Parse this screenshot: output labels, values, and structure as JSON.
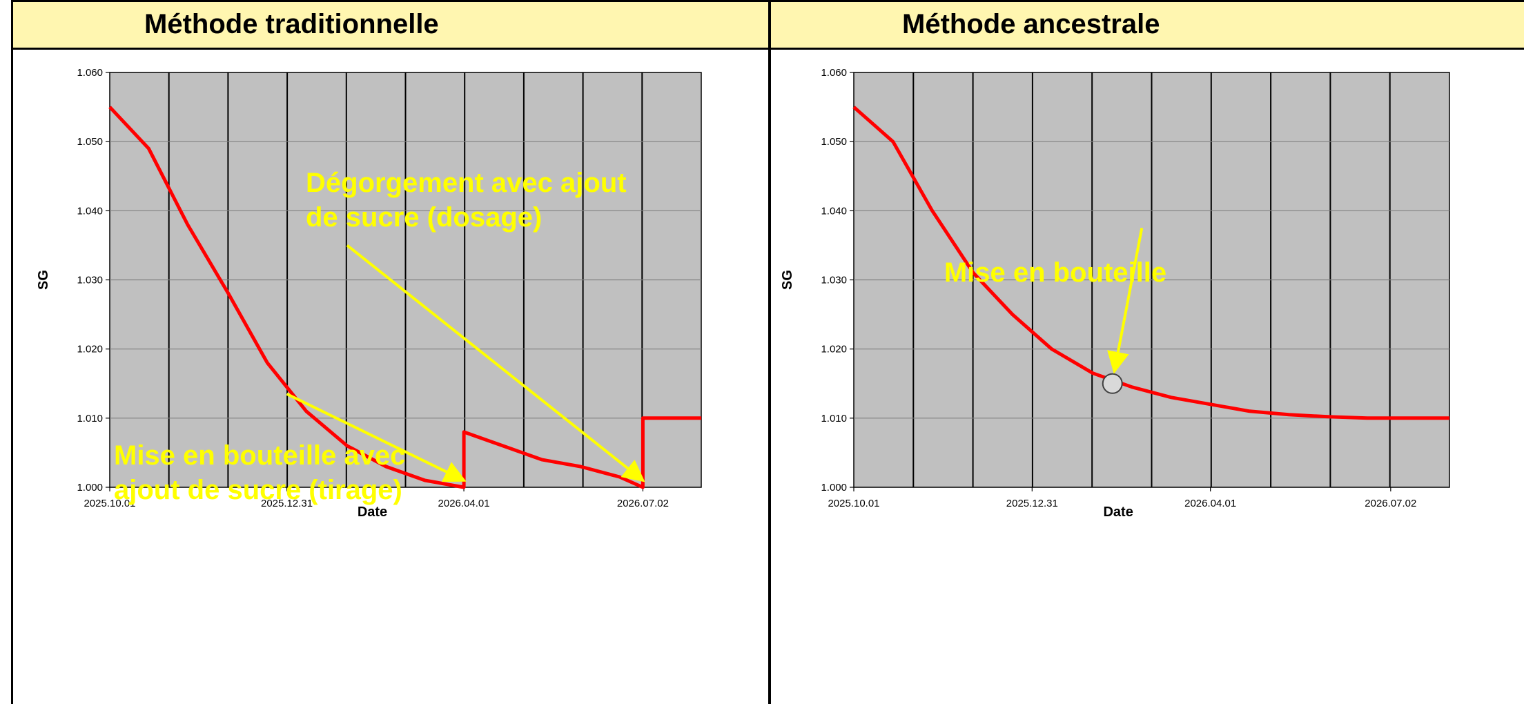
{
  "chart_data": [
    {
      "type": "line",
      "title": "Méthode traditionnelle",
      "xlabel": "Date",
      "ylabel": "SG",
      "ylim": [
        1.0,
        1.06
      ],
      "yticks": [
        "1.060",
        "1.050",
        "1.040",
        "1.030",
        "1.020",
        "1.010",
        "1.000"
      ],
      "xlim": [
        "2025.10.01",
        "2026.08.01"
      ],
      "xticks": [
        "2025.10.01",
        "2025.12.31",
        "2026.04.01",
        "2026.07.02"
      ],
      "grid": true,
      "series": [
        {
          "color": "#ff0000",
          "x": [
            "2025.10.01",
            "2025.10.21",
            "2025.11.10",
            "2025.12.01",
            "2025.12.21",
            "2026.01.10",
            "2026.01.31",
            "2026.02.20",
            "2026.03.12",
            "2026.04.01",
            "2026.04.01",
            "2026.04.21",
            "2026.05.11",
            "2026.05.31",
            "2026.06.20",
            "2026.07.02",
            "2026.07.02",
            "2026.08.01"
          ],
          "y": [
            1.055,
            1.049,
            1.038,
            1.028,
            1.018,
            1.011,
            1.006,
            1.003,
            1.001,
            1.0,
            1.008,
            1.006,
            1.004,
            1.003,
            1.0015,
            1.0,
            1.01,
            1.01
          ]
        }
      ],
      "annotations": [
        {
          "lines": [
            "Dégorgement avec ajout",
            "de sucre (dosage)"
          ],
          "arrow_from": [
            "2026.01.31",
            1.035
          ],
          "arrow_to": [
            "2026.07.02",
            1.001
          ]
        },
        {
          "lines": [
            "Mise en bouteille avec",
            "ajout de sucre (tirage)"
          ],
          "arrow_from": [
            "2025.12.31",
            1.0135
          ],
          "arrow_to": [
            "2026.04.01",
            1.001
          ]
        }
      ]
    },
    {
      "type": "line",
      "title": "Méthode ancestrale",
      "xlabel": "Date",
      "ylabel": "SG",
      "ylim": [
        1.0,
        1.06
      ],
      "yticks": [
        "1.060",
        "1.050",
        "1.040",
        "1.030",
        "1.020",
        "1.010",
        "1.000"
      ],
      "xlim": [
        "2025.10.01",
        "2026.08.01"
      ],
      "xticks": [
        "2025.10.01",
        "2025.12.31",
        "2026.04.01",
        "2026.07.02"
      ],
      "grid": true,
      "series": [
        {
          "color": "#ff0000",
          "x": [
            "2025.10.01",
            "2025.10.21",
            "2025.11.10",
            "2025.12.01",
            "2025.12.21",
            "2026.01.10",
            "2026.01.31",
            "2026.02.20",
            "2026.03.12",
            "2026.04.01",
            "2026.04.21",
            "2026.05.11",
            "2026.05.31",
            "2026.06.20",
            "2026.07.10",
            "2026.08.01"
          ],
          "y": [
            1.055,
            1.05,
            1.04,
            1.031,
            1.025,
            1.02,
            1.0165,
            1.0145,
            1.013,
            1.012,
            1.011,
            1.0105,
            1.0102,
            1.01,
            1.01,
            1.01
          ]
        }
      ],
      "marker": {
        "x": "2026.02.10",
        "y": 1.015
      },
      "annotations": [
        {
          "lines": [
            "Mise en bouteille"
          ],
          "arrow_from": [
            "2026.02.25",
            1.0375
          ],
          "arrow_to": [
            "2026.02.11",
            1.0168
          ]
        }
      ]
    }
  ]
}
